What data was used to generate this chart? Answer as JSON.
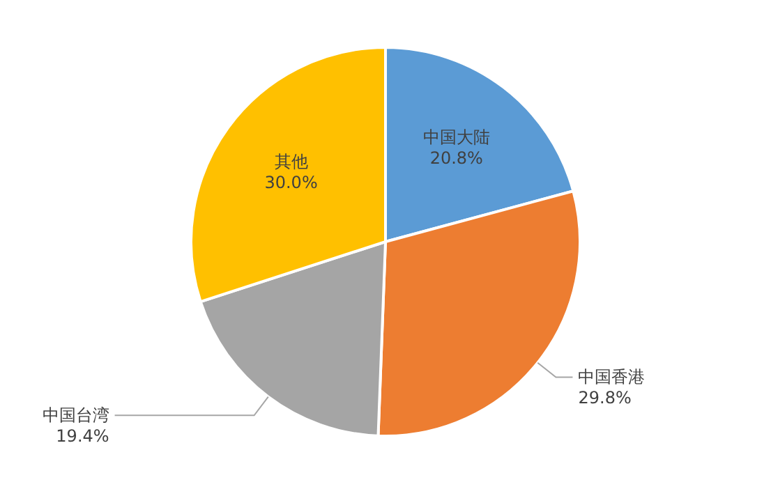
{
  "chart_data": {
    "type": "pie",
    "categories": [
      "中国大陆",
      "中国香港",
      "中国台湾",
      "其他"
    ],
    "values": [
      20.8,
      29.8,
      19.4,
      30.0
    ],
    "value_labels": [
      "20.8%",
      "29.8%",
      "19.4%",
      "30.0%"
    ],
    "colors": [
      "#5b9bd5",
      "#ed7d31",
      "#a5a5a5",
      "#ffc000"
    ],
    "legend": false
  }
}
